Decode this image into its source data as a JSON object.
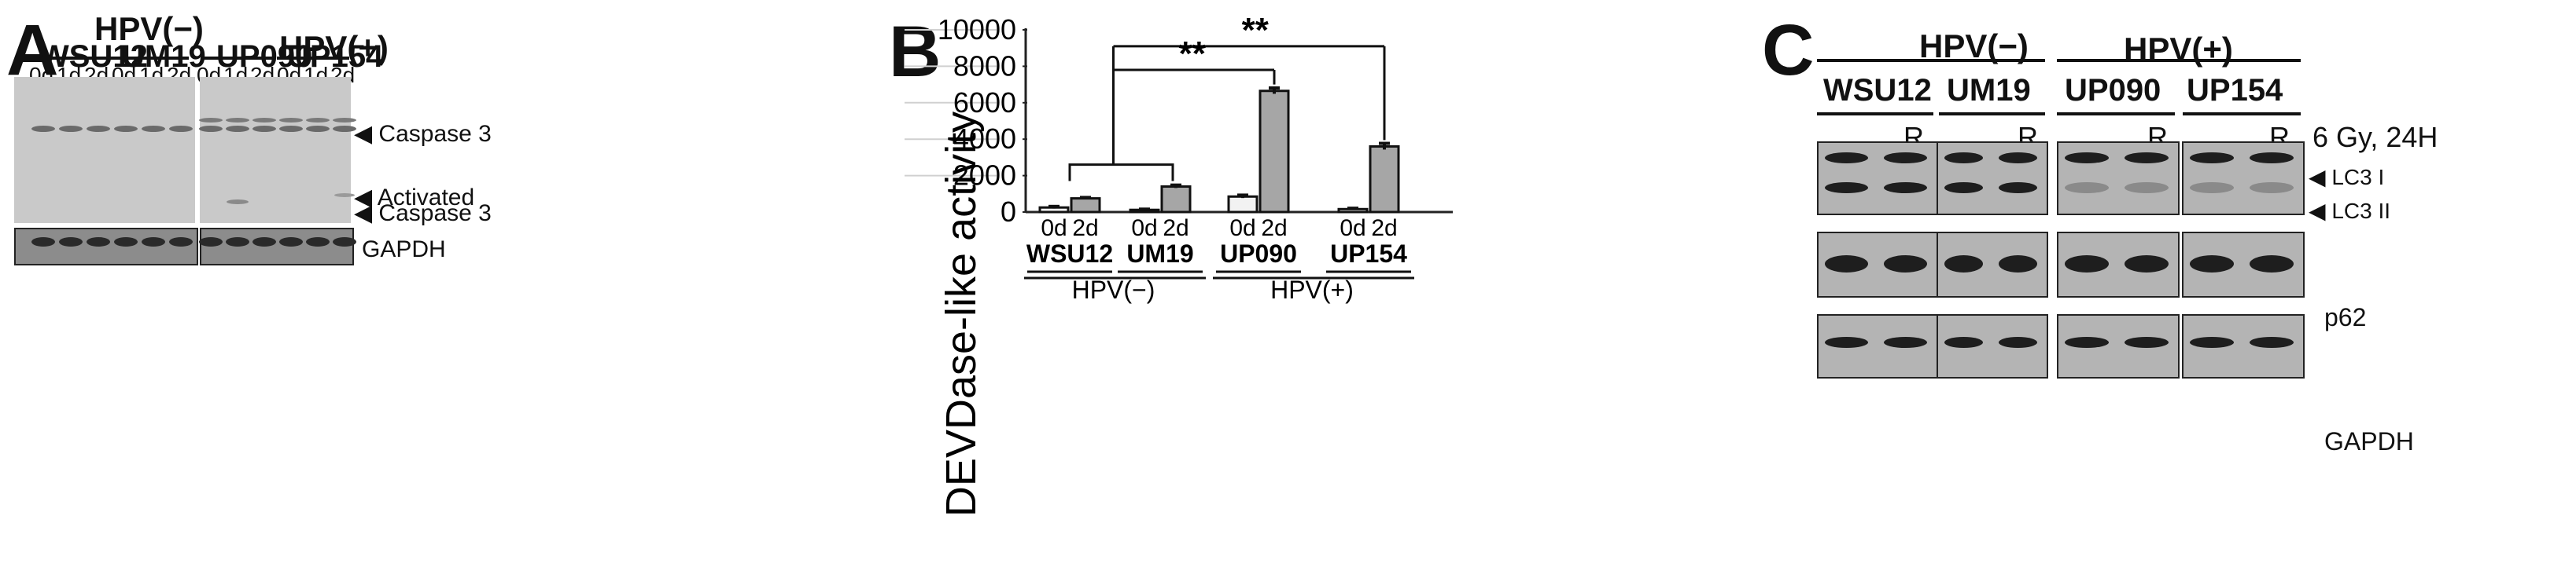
{
  "panelA": {
    "letter": "A",
    "hpv_neg": "HPV(−)",
    "hpv_pos": "HPV(+)",
    "lines": [
      "WSU12",
      "UM19",
      "UP090",
      "UP154"
    ],
    "times": [
      "0d",
      "1d",
      "2d"
    ],
    "labels": {
      "caspase3": "Caspase 3",
      "activated": "Activated",
      "caspase3b": "Caspase 3",
      "gapdh": "GAPDH"
    }
  },
  "panelC": {
    "letter": "C",
    "hpv_neg": "HPV(−)",
    "hpv_pos": "HPV(+)",
    "lines": [
      "WSU12",
      "UM19",
      "UP090",
      "UP154"
    ],
    "treatment_mark": "R",
    "condition": "6 Gy, 24H",
    "labels": {
      "lc3i": "LC3 I",
      "lc3ii": "LC3 II",
      "p62": "p62",
      "gapdh": "GAPDH"
    }
  },
  "chart_data": {
    "type": "bar",
    "panel_letter": "B",
    "ylabel": "DEVDase-like activity",
    "ylim": [
      0,
      10000
    ],
    "yticks": [
      0,
      2000,
      4000,
      6000,
      8000,
      10000
    ],
    "grid": true,
    "categories": [
      "WSU12",
      "UM19",
      "UP090",
      "UP154"
    ],
    "group_labels": [
      "HPV(−)",
      "HPV(+)"
    ],
    "series": [
      {
        "name": "0d",
        "values": [
          250,
          120,
          850,
          160
        ],
        "errors": [
          60,
          40,
          80,
          50
        ],
        "color": "#f2f2f2"
      },
      {
        "name": "2d",
        "values": [
          750,
          1400,
          6650,
          3600
        ],
        "errors": [
          50,
          80,
          160,
          170
        ],
        "color": "#a6a6a6"
      }
    ],
    "annotations": [
      {
        "text": "**",
        "compare": "HPV(−) vs UP090 2d"
      },
      {
        "text": "**",
        "compare": "HPV(−) vs UP154 2d"
      }
    ]
  }
}
